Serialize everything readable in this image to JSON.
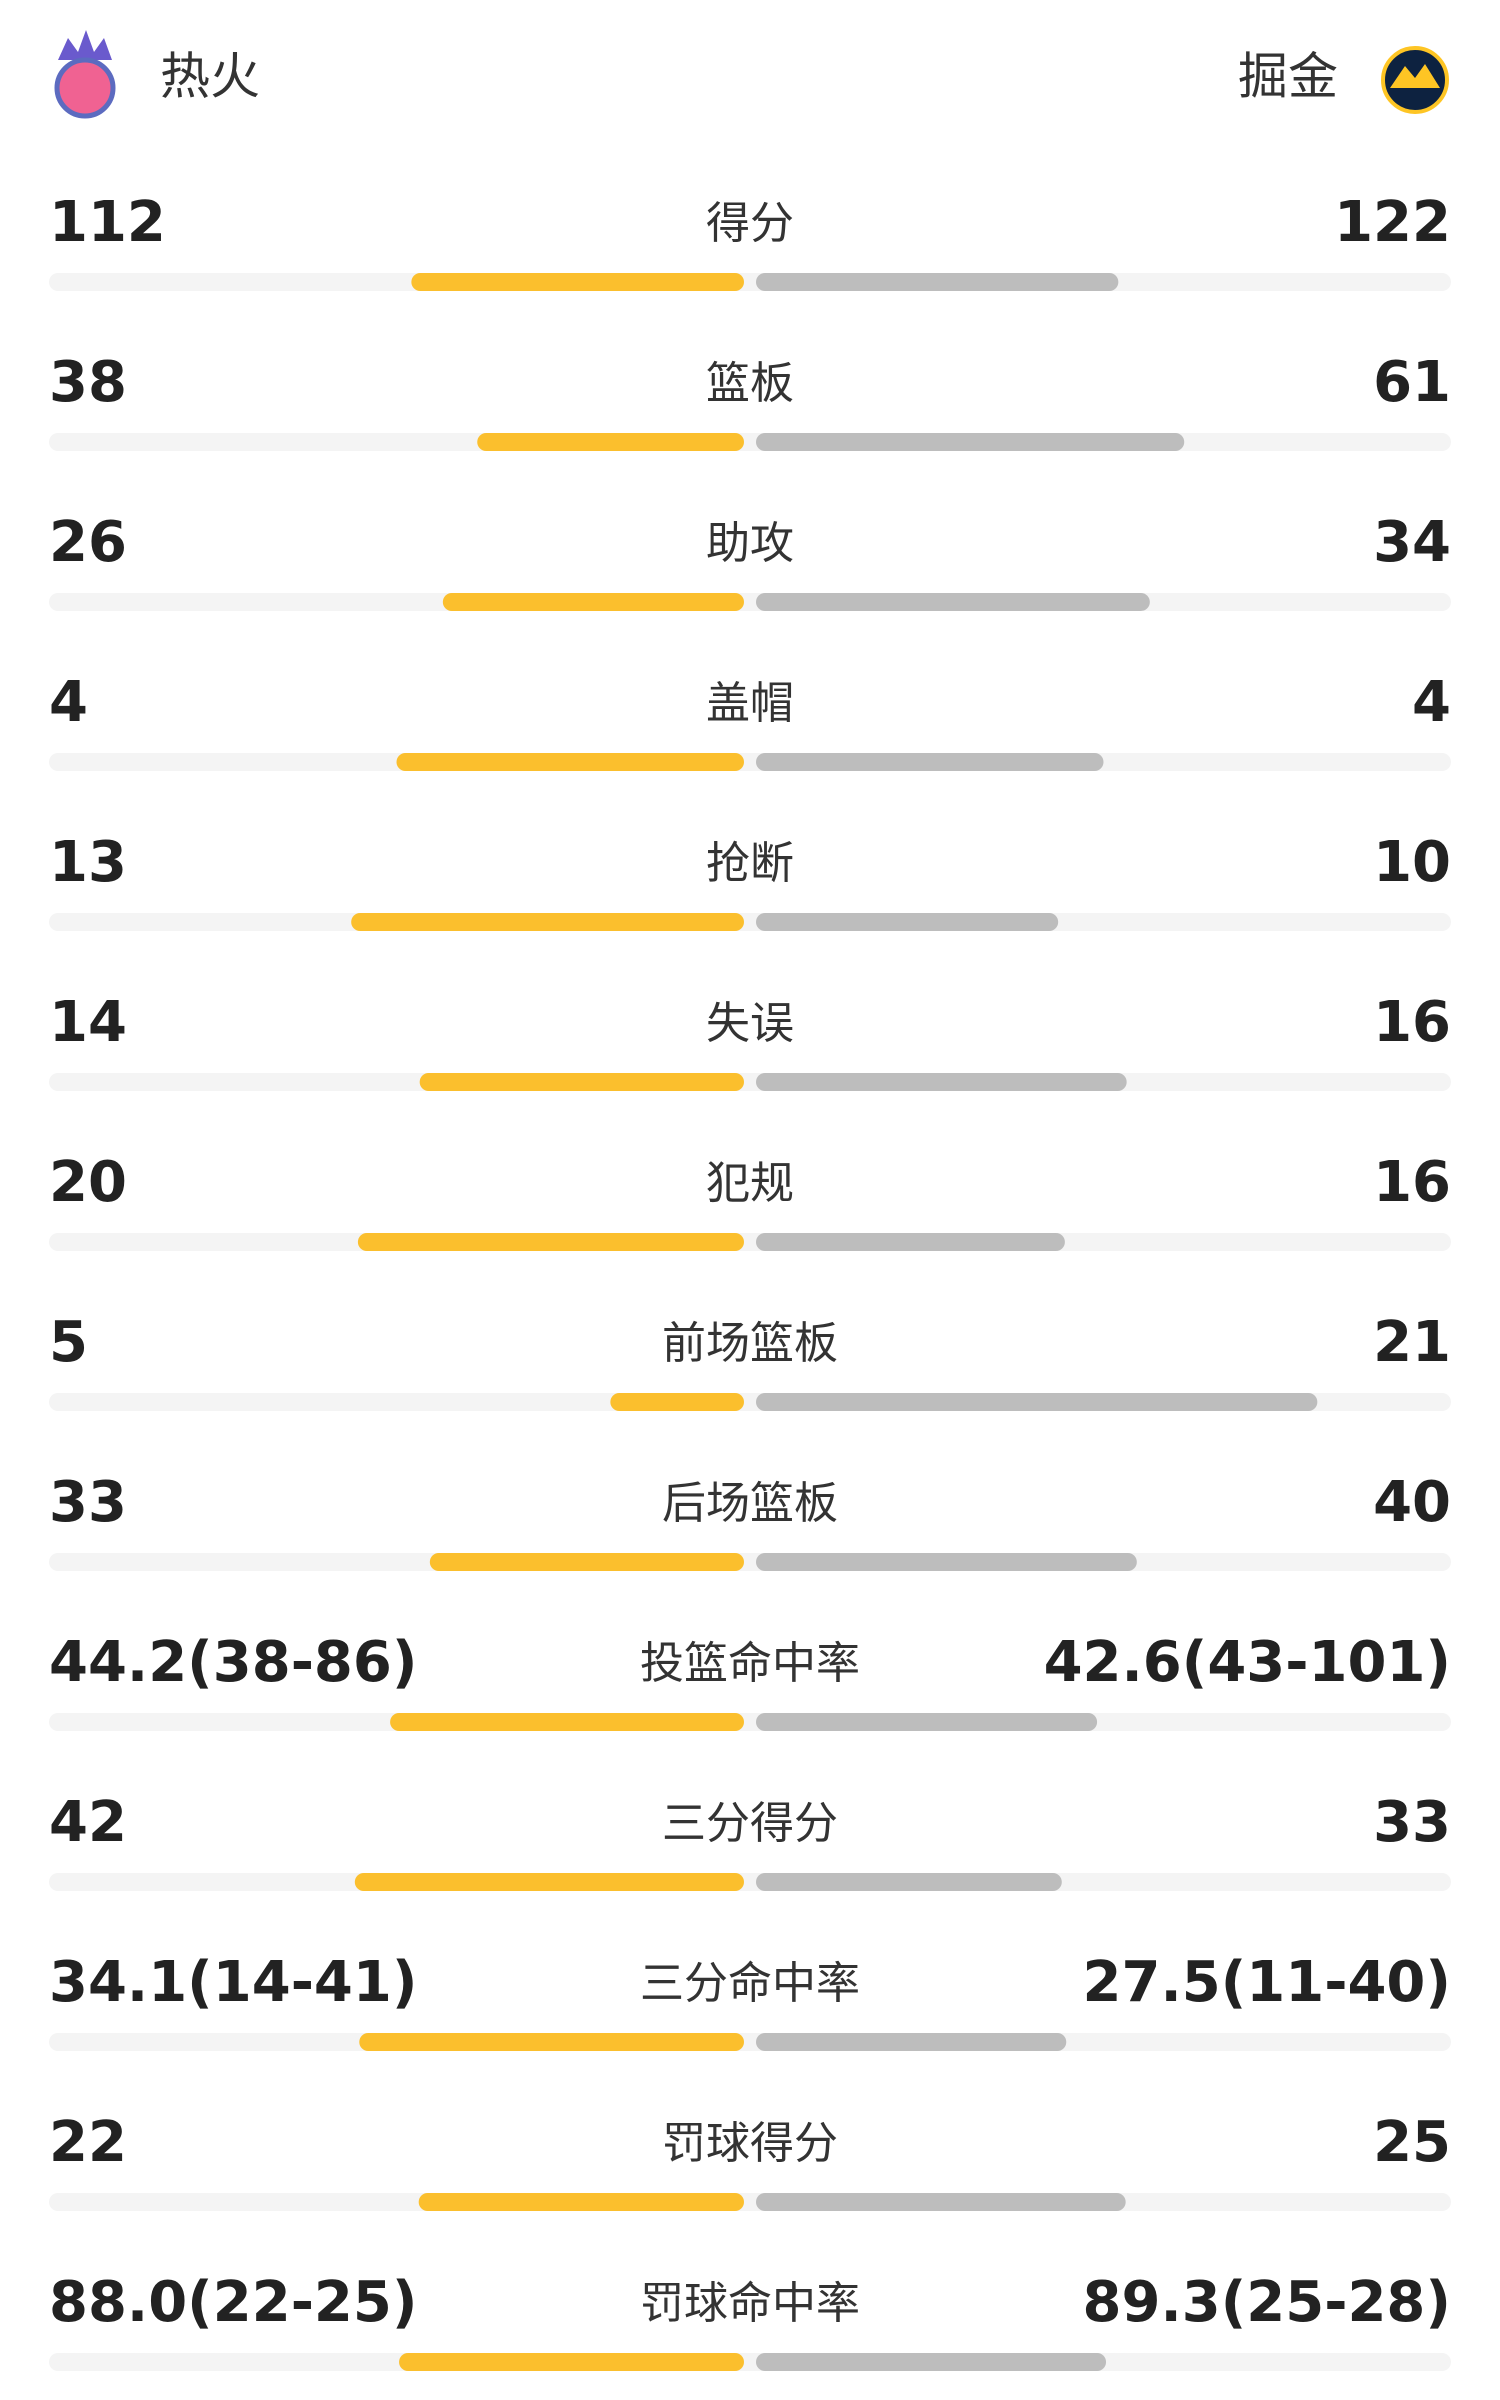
{
  "header": {
    "home": "热火",
    "away": "掘金"
  },
  "rows": [
    {
      "label": "得分",
      "left": 112,
      "right": 122
    },
    {
      "label": "篮板",
      "left": 38,
      "right": 61
    },
    {
      "label": "助攻",
      "left": 26,
      "right": 34
    },
    {
      "label": "盖帽",
      "left": 4,
      "right": 4
    },
    {
      "label": "抢断",
      "left": 13,
      "right": 10
    },
    {
      "label": "失误",
      "left": 14,
      "right": 16
    },
    {
      "label": "犯规",
      "left": 20,
      "right": 16
    },
    {
      "label": "前场篮板",
      "left": 5,
      "right": 21
    },
    {
      "label": "后场篮板",
      "left": 33,
      "right": 40
    },
    {
      "label": "投篮命中率",
      "left": {
        "value": 44.2,
        "label": "44.2(38-86)"
      },
      "right": {
        "value": 42.6,
        "label": "42.6(43-101)"
      }
    },
    {
      "label": "三分得分",
      "left": 42,
      "right": 33
    },
    {
      "label": "三分命中率",
      "left": {
        "value": 34.1,
        "label": "34.1(14-41)"
      },
      "right": {
        "value": 27.5,
        "label": "27.5(11-40)"
      }
    },
    {
      "label": "罚球得分",
      "left": 22,
      "right": 25
    },
    {
      "label": "罚球命中率",
      "left": {
        "value": 88.0,
        "label": "88.0(22-25)"
      },
      "right": {
        "value": 89.3,
        "label": "89.3(25-28)"
      }
    }
  ]
}
